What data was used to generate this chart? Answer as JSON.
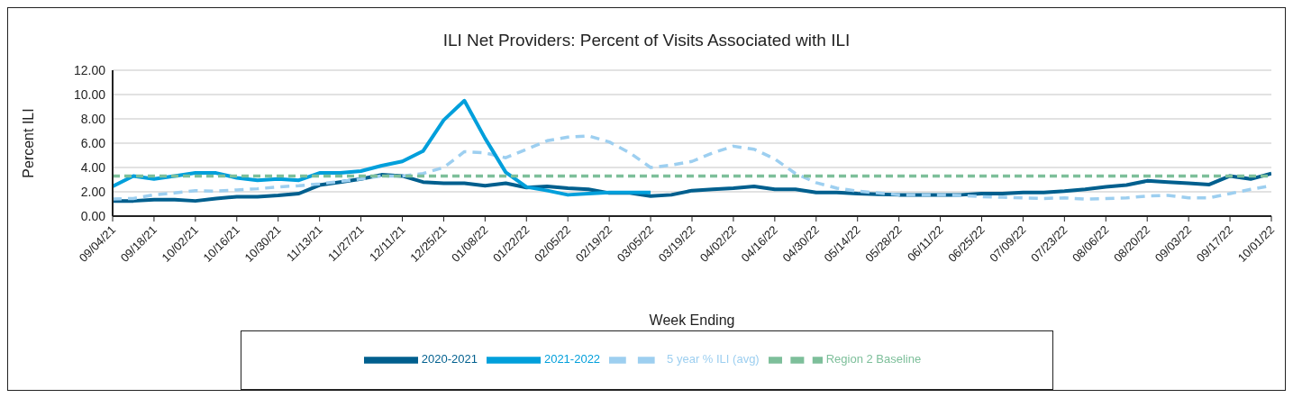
{
  "chart_data": {
    "type": "line",
    "title": "ILI Net Providers:  Percent of Visits Associated with ILI",
    "xlabel": "Week Ending",
    "ylabel": "Percent ILI",
    "categories": [
      "09/04/21",
      null,
      "09/18/21",
      null,
      "10/02/21",
      null,
      "10/16/21",
      null,
      "10/30/21",
      null,
      "11/13/21",
      null,
      "11/27/21",
      null,
      "12/11/21",
      null,
      "12/25/21",
      null,
      "01/08/22",
      null,
      "01/22/22",
      null,
      "02/05/22",
      null,
      "02/19/22",
      null,
      "03/05/22",
      null,
      "03/19/22",
      null,
      "04/02/22",
      null,
      "04/16/22",
      null,
      "04/30/22",
      null,
      "05/14/22",
      null,
      "05/28/22",
      null,
      "06/11/22",
      null,
      "06/25/22",
      null,
      "07/09/22",
      null,
      "07/23/22",
      null,
      "08/06/22",
      null,
      "08/20/22",
      null,
      "09/03/22",
      null,
      "09/17/22",
      null,
      "10/01/22"
    ],
    "series": [
      {
        "name": "2020-2021",
        "color": "#005f8e",
        "line_style": "solid",
        "values": [
          1.25,
          1.25,
          1.35,
          1.35,
          1.25,
          1.45,
          1.6,
          1.6,
          1.7,
          1.85,
          2.55,
          2.8,
          3.05,
          3.4,
          3.3,
          2.8,
          2.7,
          2.7,
          2.5,
          2.7,
          2.35,
          2.45,
          2.3,
          2.2,
          1.9,
          1.9,
          1.65,
          1.75,
          2.1,
          2.2,
          2.3,
          2.45,
          2.2,
          2.2,
          1.95,
          1.95,
          1.85,
          1.8,
          1.75,
          1.75,
          1.75,
          1.75,
          1.85,
          1.85,
          1.95,
          1.95,
          2.05,
          2.2,
          2.4,
          2.55,
          2.9,
          2.8,
          2.7,
          2.6,
          3.3,
          3.05,
          3.5
        ]
      },
      {
        "name": "5 year % ILI (avg)",
        "color": "#9dcff0",
        "line_style": "dashed",
        "values": [
          1.4,
          1.45,
          1.75,
          1.9,
          2.1,
          2.05,
          2.15,
          2.25,
          2.4,
          2.5,
          2.65,
          2.85,
          3.05,
          3.3,
          3.3,
          3.5,
          4.0,
          5.3,
          5.2,
          4.8,
          5.5,
          6.2,
          6.5,
          6.6,
          6.1,
          5.2,
          4.0,
          4.2,
          4.5,
          5.2,
          5.75,
          5.5,
          4.7,
          3.5,
          2.75,
          2.3,
          2.05,
          1.9,
          1.75,
          1.75,
          1.75,
          1.7,
          1.6,
          1.55,
          1.5,
          1.45,
          1.5,
          1.4,
          1.45,
          1.5,
          1.65,
          1.7,
          1.5,
          1.5,
          1.85,
          2.2,
          2.5
        ]
      },
      {
        "name": "2021-2022",
        "color": "#009fdb",
        "line_style": "solid",
        "values": [
          2.45,
          3.3,
          3.05,
          3.3,
          3.55,
          3.55,
          3.15,
          2.95,
          3.05,
          2.95,
          3.55,
          3.55,
          3.7,
          4.15,
          4.5,
          5.35,
          7.9,
          9.5,
          6.4,
          3.6,
          2.4,
          2.1,
          1.75,
          1.85,
          1.95,
          1.95,
          1.95,
          null,
          null,
          null,
          null,
          null,
          null,
          null,
          null,
          null,
          null,
          null,
          null,
          null,
          null,
          null,
          null,
          null,
          null,
          null,
          null,
          null,
          null,
          null,
          null,
          null,
          null,
          null,
          null,
          null,
          null
        ]
      },
      {
        "name": "Region 2 Baseline",
        "color": "#7dbf9a",
        "line_style": "dashed",
        "values": [
          3.3,
          3.3,
          3.3,
          3.3,
          3.3,
          3.3,
          3.3,
          3.3,
          3.3,
          3.3,
          3.3,
          3.3,
          3.3,
          3.3,
          3.3,
          3.3,
          3.3,
          3.3,
          3.3,
          3.3,
          3.3,
          3.3,
          3.3,
          3.3,
          3.3,
          3.3,
          3.3,
          3.3,
          3.3,
          3.3,
          3.3,
          3.3,
          3.3,
          3.3,
          3.3,
          3.3,
          3.3,
          3.3,
          3.3,
          3.3,
          3.3,
          3.3,
          3.3,
          3.3,
          3.3,
          3.3,
          3.3,
          3.3,
          3.3,
          3.3,
          3.3,
          3.3,
          3.3,
          3.3,
          3.3,
          3.3,
          3.3
        ]
      }
    ],
    "ylim": [
      0,
      12
    ],
    "yticks": [
      {
        "value": 0,
        "label": "0.00"
      },
      {
        "value": 2,
        "label": "2.00"
      },
      {
        "value": 4,
        "label": "4.00"
      },
      {
        "value": 6,
        "label": "6.00"
      },
      {
        "value": 8,
        "label": "8.00"
      },
      {
        "value": 10,
        "label": "10.00"
      },
      {
        "value": 12,
        "label": "12.00"
      }
    ],
    "grid": "y",
    "legend": "bottom",
    "marker": "none"
  }
}
